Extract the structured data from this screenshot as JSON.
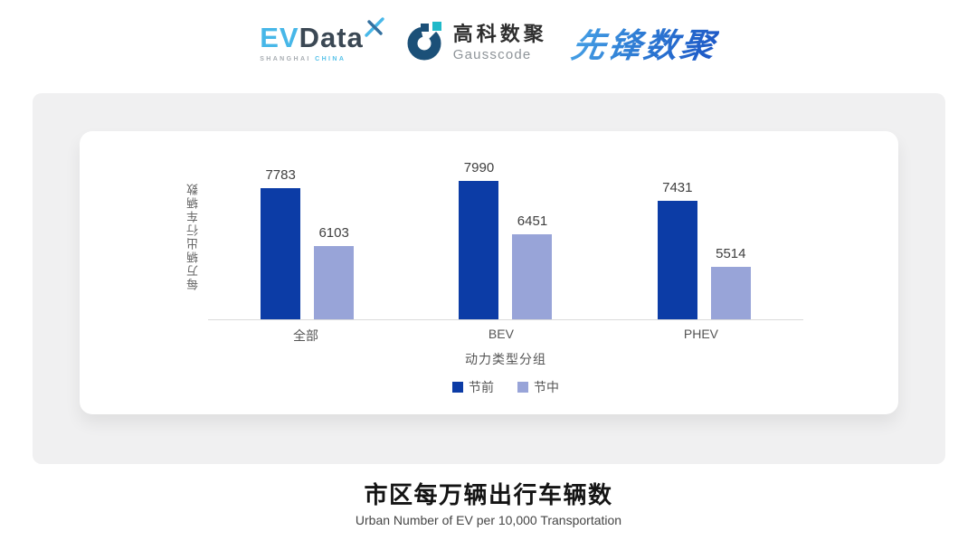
{
  "header": {
    "evdata_logo": {
      "ev": "EV",
      "data": "Data",
      "sub_left": "SHANGHAI",
      "sub_right": "CHINA"
    },
    "gausscode_logo": {
      "name_cn": "高科数聚",
      "name_en": "Gausscode"
    },
    "xianfeng_logo": {
      "text": "先锋数聚"
    }
  },
  "chart_data": {
    "type": "bar",
    "categories": [
      "全部",
      "BEV",
      "PHEV"
    ],
    "series": [
      {
        "name": "节前",
        "color": "#0C3CA6",
        "values": [
          7783,
          7990,
          7431
        ]
      },
      {
        "name": "节中",
        "color": "#98A4D8",
        "values": [
          6103,
          6451,
          5514
        ]
      }
    ],
    "title": "市区每万辆出行车辆数",
    "xlabel": "动力类型分组",
    "ylabel": "每万辆出行车辆数",
    "ylim": [
      4000,
      8800
    ],
    "grid": false,
    "legend_position": "bottom",
    "value_labels": true
  },
  "footer": {
    "title": "市区每万辆出行车辆数",
    "subtitle": "Urban Number of EV per 10,000 Transportation"
  },
  "colors": {
    "bar_pre_festival": "#0C3CA6",
    "bar_during_festival": "#98A4D8",
    "panel_background": "#F0F0F1",
    "axis_line": "#DADADA",
    "evdata_blue": "#47B7E8",
    "evdata_slate": "#3B4854",
    "gauss_navy": "#1B5078",
    "gauss_teal": "#1FB9C9",
    "pioneer_blue": "#2E7CD4"
  }
}
